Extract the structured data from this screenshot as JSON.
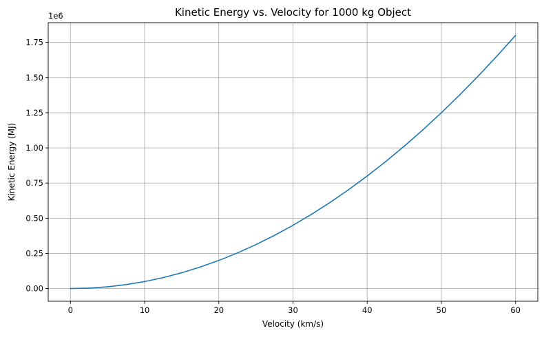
{
  "chart_data": {
    "type": "line",
    "title": "Kinetic Energy vs. Velocity for 1000 kg Object",
    "xlabel": "Velocity (km/s)",
    "ylabel": "Kinetic Energy (MJ)",
    "y_offset_label": "1e6",
    "xlim": [
      -3,
      63
    ],
    "ylim": [
      -90000,
      1890000
    ],
    "xticks": [
      0,
      10,
      20,
      30,
      40,
      50,
      60
    ],
    "xtick_labels": [
      "0",
      "10",
      "20",
      "30",
      "40",
      "50",
      "60"
    ],
    "yticks": [
      0,
      250000,
      500000,
      750000,
      1000000,
      1250000,
      1500000,
      1750000
    ],
    "ytick_labels": [
      "0.00",
      "0.25",
      "0.50",
      "0.75",
      "1.00",
      "1.25",
      "1.50",
      "1.75"
    ],
    "grid": true,
    "series": [
      {
        "color": "#1f77b4",
        "x": [
          0,
          2.5,
          5,
          7.5,
          10,
          12.5,
          15,
          17.5,
          20,
          22.5,
          25,
          27.5,
          30,
          32.5,
          35,
          37.5,
          40,
          42.5,
          45,
          47.5,
          50,
          52.5,
          55,
          57.5,
          60
        ],
        "y": [
          0,
          3125,
          12500,
          28125,
          50000,
          78125,
          112500,
          153125,
          200000,
          253125,
          312500,
          378125,
          450000,
          528125,
          612500,
          703125,
          800000,
          903125,
          1012500,
          1128125,
          1250000,
          1378125,
          1512500,
          1653125,
          1800000
        ]
      }
    ]
  }
}
